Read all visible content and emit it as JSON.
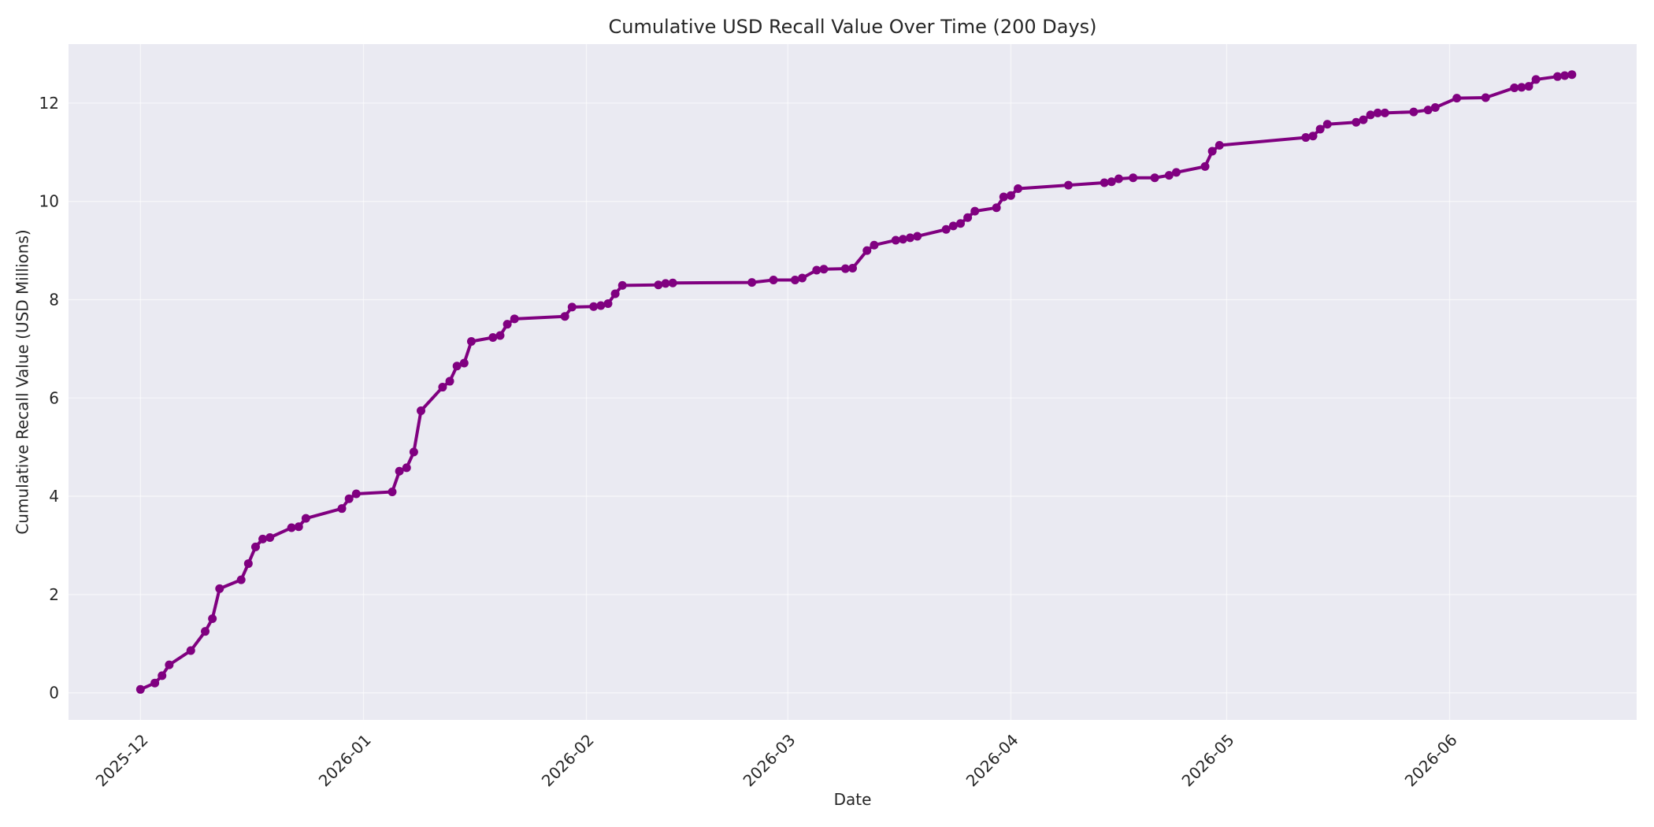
{
  "chart_data": {
    "type": "line",
    "title": "Cumulative USD Recall Value Over Time (200 Days)",
    "xlabel": "Date",
    "ylabel": "Cumulative Recall Value (USD Millions)",
    "x_tick_labels": [
      "2025-12",
      "2026-01",
      "2026-02",
      "2026-03",
      "2026-04",
      "2026-05",
      "2026-06"
    ],
    "x_tick_dates": [
      "2025-12-01",
      "2026-01-01",
      "2026-02-01",
      "2026-03-01",
      "2026-04-01",
      "2026-05-01",
      "2026-06-01"
    ],
    "xlim": [
      "2025-11-21",
      "2026-06-27"
    ],
    "y_ticks": [
      0,
      2,
      4,
      6,
      8,
      10,
      12
    ],
    "ylim": [
      -0.55,
      13.2
    ],
    "grid": true,
    "colors": {
      "background": "#eaeaf2",
      "grid": "#ffffff",
      "series": "#800080"
    },
    "series": [
      {
        "color": "#800080",
        "marker": "circle",
        "points": [
          [
            "2025-12-01",
            0.07
          ],
          [
            "2025-12-03",
            0.2
          ],
          [
            "2025-12-04",
            0.35
          ],
          [
            "2025-12-05",
            0.57
          ],
          [
            "2025-12-08",
            0.86
          ],
          [
            "2025-12-10",
            1.25
          ],
          [
            "2025-12-11",
            1.51
          ],
          [
            "2025-12-12",
            2.12
          ],
          [
            "2025-12-15",
            2.3
          ],
          [
            "2025-12-16",
            2.63
          ],
          [
            "2025-12-17",
            2.97
          ],
          [
            "2025-12-18",
            3.13
          ],
          [
            "2025-12-19",
            3.16
          ],
          [
            "2025-12-22",
            3.36
          ],
          [
            "2025-12-23",
            3.38
          ],
          [
            "2025-12-24",
            3.55
          ],
          [
            "2025-12-29",
            3.75
          ],
          [
            "2025-12-30",
            3.95
          ],
          [
            "2025-12-31",
            4.05
          ],
          [
            "2026-01-05",
            4.09
          ],
          [
            "2026-01-06",
            4.51
          ],
          [
            "2026-01-07",
            4.58
          ],
          [
            "2026-01-08",
            4.9
          ],
          [
            "2026-01-09",
            5.74
          ],
          [
            "2026-01-12",
            6.22
          ],
          [
            "2026-01-13",
            6.34
          ],
          [
            "2026-01-14",
            6.65
          ],
          [
            "2026-01-15",
            6.71
          ],
          [
            "2026-01-16",
            7.15
          ],
          [
            "2026-01-19",
            7.23
          ],
          [
            "2026-01-20",
            7.27
          ],
          [
            "2026-01-21",
            7.5
          ],
          [
            "2026-01-22",
            7.61
          ],
          [
            "2026-01-29",
            7.66
          ],
          [
            "2026-01-30",
            7.85
          ],
          [
            "2026-02-02",
            7.86
          ],
          [
            "2026-02-03",
            7.88
          ],
          [
            "2026-02-04",
            7.92
          ],
          [
            "2026-02-05",
            8.12
          ],
          [
            "2026-02-06",
            8.29
          ],
          [
            "2026-02-11",
            8.3
          ],
          [
            "2026-02-12",
            8.33
          ],
          [
            "2026-02-13",
            8.34
          ],
          [
            "2026-02-24",
            8.35
          ],
          [
            "2026-02-27",
            8.4
          ],
          [
            "2026-03-02",
            8.4
          ],
          [
            "2026-03-03",
            8.44
          ],
          [
            "2026-03-05",
            8.6
          ],
          [
            "2026-03-06",
            8.62
          ],
          [
            "2026-03-09",
            8.63
          ],
          [
            "2026-03-10",
            8.64
          ],
          [
            "2026-03-12",
            9.0
          ],
          [
            "2026-03-13",
            9.11
          ],
          [
            "2026-03-16",
            9.21
          ],
          [
            "2026-03-17",
            9.23
          ],
          [
            "2026-03-18",
            9.26
          ],
          [
            "2026-03-19",
            9.29
          ],
          [
            "2026-03-23",
            9.43
          ],
          [
            "2026-03-24",
            9.5
          ],
          [
            "2026-03-25",
            9.55
          ],
          [
            "2026-03-26",
            9.67
          ],
          [
            "2026-03-27",
            9.8
          ],
          [
            "2026-03-30",
            9.87
          ],
          [
            "2026-03-31",
            10.09
          ],
          [
            "2026-04-01",
            10.12
          ],
          [
            "2026-04-02",
            10.26
          ],
          [
            "2026-04-09",
            10.33
          ],
          [
            "2026-04-14",
            10.38
          ],
          [
            "2026-04-15",
            10.4
          ],
          [
            "2026-04-16",
            10.46
          ],
          [
            "2026-04-18",
            10.48
          ],
          [
            "2026-04-21",
            10.48
          ],
          [
            "2026-04-23",
            10.53
          ],
          [
            "2026-04-24",
            10.59
          ],
          [
            "2026-04-28",
            10.71
          ],
          [
            "2026-04-29",
            11.02
          ],
          [
            "2026-04-30",
            11.14
          ],
          [
            "2026-05-12",
            11.3
          ],
          [
            "2026-05-13",
            11.33
          ],
          [
            "2026-05-14",
            11.47
          ],
          [
            "2026-05-15",
            11.57
          ],
          [
            "2026-05-19",
            11.61
          ],
          [
            "2026-05-20",
            11.66
          ],
          [
            "2026-05-21",
            11.76
          ],
          [
            "2026-05-22",
            11.8
          ],
          [
            "2026-05-23",
            11.8
          ],
          [
            "2026-05-27",
            11.82
          ],
          [
            "2026-05-29",
            11.86
          ],
          [
            "2026-05-30",
            11.91
          ],
          [
            "2026-06-02",
            12.1
          ],
          [
            "2026-06-06",
            12.11
          ],
          [
            "2026-06-10",
            12.31
          ],
          [
            "2026-06-11",
            12.32
          ],
          [
            "2026-06-12",
            12.34
          ],
          [
            "2026-06-13",
            12.48
          ],
          [
            "2026-06-16",
            12.54
          ],
          [
            "2026-06-17",
            12.56
          ],
          [
            "2026-06-18",
            12.58
          ]
        ]
      }
    ]
  }
}
